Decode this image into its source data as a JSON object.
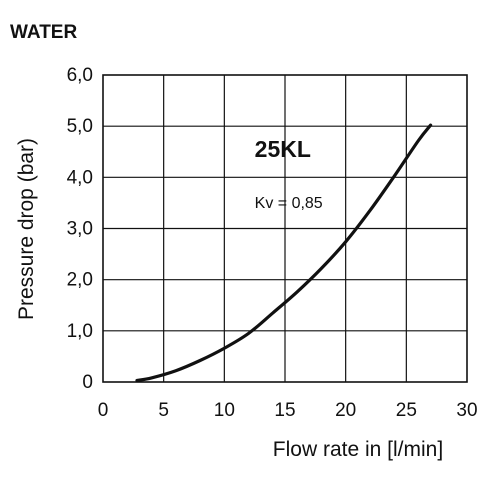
{
  "chart_data": {
    "type": "line",
    "title": "WATER",
    "xlabel": "Flow rate in [l/min]",
    "ylabel": "Pressure drop (bar)",
    "xlim": [
      0,
      30
    ],
    "ylim": [
      0,
      6.0
    ],
    "xticks": [
      0,
      5,
      10,
      15,
      20,
      25,
      30
    ],
    "xtick_labels": [
      "0",
      "5",
      "10",
      "15",
      "20",
      "25",
      "30"
    ],
    "yticks": [
      0,
      1.0,
      2.0,
      3.0,
      4.0,
      5.0,
      6.0
    ],
    "ytick_labels": [
      "0",
      "1,0",
      "2,0",
      "3,0",
      "4,0",
      "5,0",
      "6,0"
    ],
    "grid": true,
    "series": [
      {
        "name": "",
        "x": [
          2.8,
          4.0,
          6.0,
          8.0,
          10.0,
          12.0,
          14.0,
          16.0,
          18.0,
          20.0,
          22.0,
          24.0,
          26.0,
          27.0
        ],
        "y": [
          0.03,
          0.08,
          0.22,
          0.42,
          0.66,
          0.95,
          1.35,
          1.76,
          2.22,
          2.74,
          3.35,
          4.02,
          4.72,
          5.02
        ]
      }
    ],
    "annotations": [
      {
        "text": "25KL",
        "x": 12.5,
        "y": 4.4
      },
      {
        "text": "Kv = 0,85",
        "x": 12.5,
        "y": 3.4
      }
    ]
  }
}
